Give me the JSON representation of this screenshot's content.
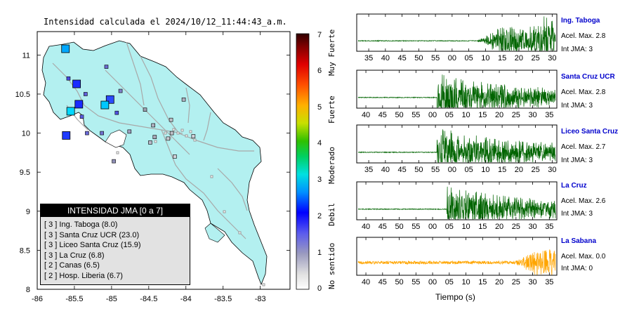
{
  "map": {
    "title": "Intensidad calculada el 2024/10/12_11:44:43_a.m.",
    "xlim": [
      -86,
      -82.6
    ],
    "ylim": [
      8,
      11.3
    ],
    "xticks": [
      "-86",
      "-85.5",
      "-85",
      "-84.5",
      "-84",
      "-83.5",
      "-83"
    ],
    "yticks": [
      "8",
      "8.5",
      "9",
      "9.5",
      "10",
      "10.5",
      "11"
    ],
    "land_color": "#b3f0f0",
    "stations_large": [
      {
        "lon": -85.62,
        "lat": 11.08,
        "color": "#00a8ff"
      },
      {
        "lon": -85.47,
        "lat": 10.63,
        "color": "#1a2bff"
      },
      {
        "lon": -85.44,
        "lat": 10.37,
        "color": "#1a2bff"
      },
      {
        "lon": -85.55,
        "lat": 10.28,
        "color": "#00d8ff"
      },
      {
        "lon": -85.02,
        "lat": 10.43,
        "color": "#2a4bff"
      },
      {
        "lon": -85.09,
        "lat": 10.36,
        "color": "#00c8ff"
      },
      {
        "lon": -85.61,
        "lat": 9.97,
        "color": "#1f3bff"
      }
    ],
    "stations_small": [
      {
        "lon": -85.07,
        "lat": 10.85,
        "color": "#6a6ad0"
      },
      {
        "lon": -85.58,
        "lat": 10.7,
        "color": "#4a4ae0"
      },
      {
        "lon": -85.35,
        "lat": 10.5,
        "color": "#6060d8"
      },
      {
        "lon": -84.88,
        "lat": 10.54,
        "color": "#8080c8"
      },
      {
        "lon": -84.93,
        "lat": 10.26,
        "color": "#5050e0"
      },
      {
        "lon": -85.13,
        "lat": 10.0,
        "color": "#7070d0"
      },
      {
        "lon": -85.33,
        "lat": 10.0,
        "color": "#6a6ad8"
      },
      {
        "lon": -85.4,
        "lat": 10.21,
        "color": "#5a5ae0"
      },
      {
        "lon": -84.97,
        "lat": 9.64,
        "color": "#9090b8"
      },
      {
        "lon": -84.76,
        "lat": 10.02,
        "color": "#a0a0c0"
      },
      {
        "lon": -84.55,
        "lat": 10.3,
        "color": "#a0a0b0"
      },
      {
        "lon": -84.44,
        "lat": 10.1,
        "color": "#b0b0c0"
      },
      {
        "lon": -84.42,
        "lat": 9.95,
        "color": "#a8a8b8"
      },
      {
        "lon": -84.2,
        "lat": 10.17,
        "color": "#c0c0c8"
      },
      {
        "lon": -84.19,
        "lat": 10.0,
        "color": "#c0c0c8"
      },
      {
        "lon": -84.03,
        "lat": 10.43,
        "color": "#b0b0c0"
      },
      {
        "lon": -84.24,
        "lat": 9.93,
        "color": "#c8c8d0"
      },
      {
        "lon": -84.15,
        "lat": 9.7,
        "color": "#d0d0d8"
      },
      {
        "lon": -83.9,
        "lat": 9.96,
        "color": "#d0d0d8"
      },
      {
        "lon": -84.48,
        "lat": 9.88,
        "color": "#b8b8c8"
      }
    ]
  },
  "legend": {
    "title": "INTENSIDAD JMA [0 a 7]",
    "items": [
      "[ 3 ]  Ing. Taboga (8.0)",
      "[ 3 ]  Santa Cruz UCR (23.0)",
      "[ 3 ]  Liceo Santa Cruz (15.9)",
      "[ 3 ]  La Cruz (6.8)",
      "[ 2 ]  Canas (6.5)",
      "[ 2 ]  Hosp. Liberia (6.7)"
    ]
  },
  "colorbar": {
    "ticks": [
      "0",
      "1",
      "2",
      "3",
      "4",
      "5",
      "6",
      "7"
    ],
    "scale_words": [
      "No sentido",
      "Debil",
      "Moderado",
      "Fuerte",
      "Muy Fuerte"
    ]
  },
  "chart_data": [
    {
      "type": "line",
      "station": "Ing. Taboga",
      "accel_text": "Acel. Max. 2.8",
      "int_text": "Int JMA: 3",
      "color": "#006400",
      "x_ticks": [
        "35",
        "40",
        "45",
        "50",
        "55",
        "00",
        "05",
        "10",
        "15",
        "20",
        "25",
        "30"
      ],
      "onset": 0.6
    },
    {
      "type": "line",
      "station": "Santa Cruz UCR",
      "accel_text": "Acel. Max. 2.8",
      "int_text": "Int JMA: 3",
      "color": "#006400",
      "x_ticks": [
        "40",
        "45",
        "50",
        "55",
        "00",
        "05",
        "10",
        "15",
        "20",
        "25",
        "30",
        "35"
      ],
      "onset": 0.4
    },
    {
      "type": "line",
      "station": "Liceo Santa Cruz",
      "accel_text": "Acel. Max. 2.7",
      "int_text": "Int JMA: 3",
      "color": "#006400",
      "x_ticks": [
        "35",
        "40",
        "45",
        "50",
        "55",
        "00",
        "05",
        "10",
        "15",
        "20",
        "25",
        "30"
      ],
      "onset": 0.4
    },
    {
      "type": "line",
      "station": "La Cruz",
      "accel_text": "Acel. Max. 2.6",
      "int_text": "Int JMA: 3",
      "color": "#006400",
      "x_ticks": [
        "40",
        "45",
        "50",
        "55",
        "00",
        "05",
        "10",
        "15",
        "20",
        "25",
        "30",
        "35"
      ],
      "onset": 0.45
    },
    {
      "type": "line",
      "station": "La Sabana",
      "accel_text": "Acel. Max. 0.0",
      "int_text": "Int JMA: 0",
      "color": "#ffa500",
      "x_ticks": [
        "40",
        "45",
        "50",
        "55",
        "00",
        "05",
        "10",
        "15",
        "20",
        "25",
        "30",
        "35"
      ],
      "onset": 0.8
    }
  ],
  "xlabel": "Tiempo (s)"
}
